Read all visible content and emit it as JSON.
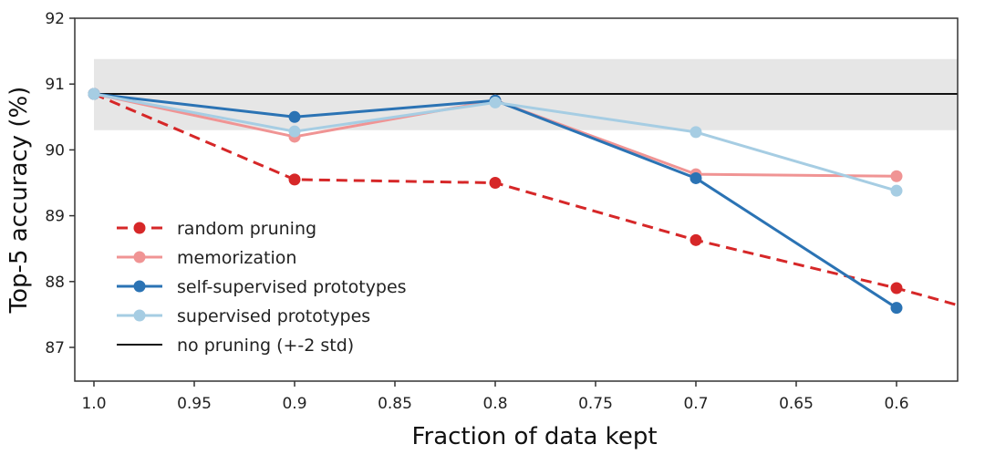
{
  "chart_data": {
    "type": "line",
    "title": "",
    "xlabel": "Fraction of data kept",
    "ylabel": "Top-5 accuracy (%)",
    "xlim": [
      1.0,
      0.567
    ],
    "ylim": [
      86.5,
      92
    ],
    "x_inverted": true,
    "grid": false,
    "legend_position": "lower-left",
    "x_ticks": [
      1.0,
      0.95,
      0.9,
      0.85,
      0.8,
      0.75,
      0.7,
      0.65,
      0.6
    ],
    "x_tick_labels": [
      "1.0",
      "0.95",
      "0.9",
      "0.85",
      "0.8",
      "0.75",
      "0.7",
      "0.65",
      "0.6"
    ],
    "y_ticks": [
      87,
      88,
      89,
      90,
      91,
      92
    ],
    "y_tick_labels": [
      "87",
      "88",
      "89",
      "90",
      "91",
      "92"
    ],
    "baseline": {
      "name": "no pruning (+-2 std)",
      "value": 90.85,
      "band": [
        90.3,
        91.38
      ],
      "color": "#111111",
      "band_color": "#e6e6e6"
    },
    "series": [
      {
        "name": "random pruning",
        "color": "#d62728",
        "dashed": true,
        "x": [
          1.0,
          0.9,
          0.8,
          0.7,
          0.6
        ],
        "values": [
          90.85,
          89.55,
          89.5,
          88.63,
          87.9
        ],
        "extend_to": [
          0.567,
          87.62
        ]
      },
      {
        "name": "memorization",
        "color": "#f09494",
        "dashed": false,
        "x": [
          1.0,
          0.9,
          0.8,
          0.7,
          0.6
        ],
        "values": [
          90.85,
          90.2,
          90.75,
          89.63,
          89.6
        ]
      },
      {
        "name": "self-supervised prototypes",
        "color": "#2b73b4",
        "dashed": false,
        "x": [
          1.0,
          0.9,
          0.8,
          0.7,
          0.6
        ],
        "values": [
          90.85,
          90.5,
          90.75,
          89.57,
          87.6
        ]
      },
      {
        "name": "supervised prototypes",
        "color": "#a6cde3",
        "dashed": false,
        "x": [
          1.0,
          0.9,
          0.8,
          0.7,
          0.6
        ],
        "values": [
          90.85,
          90.28,
          90.72,
          90.27,
          89.38
        ]
      }
    ]
  }
}
